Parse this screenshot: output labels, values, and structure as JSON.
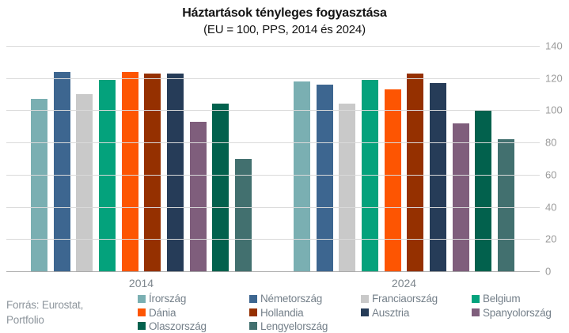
{
  "chart_data": {
    "type": "bar",
    "title": "Háztartások tényleges fogyasztása",
    "subtitle": "(EU = 100, PPS, 2014 és 2024)",
    "categories": [
      "2014",
      "2024"
    ],
    "series": [
      {
        "name": "Írország",
        "color": "#7AAFB2",
        "values": [
          107,
          118
        ]
      },
      {
        "name": "Németország",
        "color": "#3D6690",
        "values": [
          124,
          116
        ]
      },
      {
        "name": "Franciaország",
        "color": "#C9C9C9",
        "values": [
          110,
          104
        ]
      },
      {
        "name": "Belgium",
        "color": "#04A27C",
        "values": [
          119,
          119
        ]
      },
      {
        "name": "Dánia",
        "color": "#FD5502",
        "values": [
          124,
          113
        ]
      },
      {
        "name": "Hollandia",
        "color": "#953000",
        "values": [
          123,
          123
        ]
      },
      {
        "name": "Ausztria",
        "color": "#263C58",
        "values": [
          123,
          117
        ]
      },
      {
        "name": "Spanyolország",
        "color": "#7F5E7C",
        "values": [
          93,
          92
        ]
      },
      {
        "name": "Olaszország",
        "color": "#02614D",
        "values": [
          104,
          100
        ]
      },
      {
        "name": "Lengyelország",
        "color": "#42706F",
        "values": [
          70,
          82
        ]
      }
    ],
    "ylim": [
      0,
      140
    ],
    "yticks": [
      0,
      20,
      40,
      60,
      80,
      100,
      120,
      140
    ],
    "xlabel": "",
    "ylabel": "",
    "grid": "horizontal",
    "legend_position": "bottom",
    "axis_side": "right"
  },
  "source": {
    "line1": "Forrás: Eurostat,",
    "line2": "Portfolio"
  }
}
